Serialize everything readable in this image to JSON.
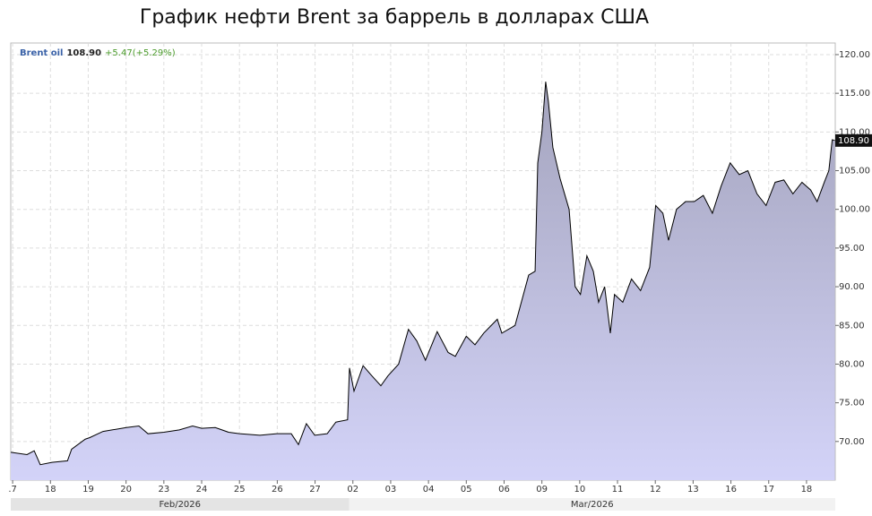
{
  "chart_data": {
    "type": "area",
    "title": "График нефти Brent за баррель в долларах США",
    "series": [
      {
        "name": "Brent oil",
        "color": "#000000",
        "x": [
          -0.05,
          0.38,
          0.57,
          0.73,
          1.04,
          1.45,
          1.56,
          1.92,
          2.04,
          2.39,
          3.01,
          3.34,
          3.58,
          4.0,
          4.41,
          4.76,
          5.0,
          5.36,
          5.71,
          6.0,
          6.54,
          6.99,
          7.37,
          7.56,
          7.77,
          7.99,
          8.32,
          8.55,
          8.86,
          8.91,
          9.03,
          9.27,
          9.5,
          9.74,
          9.93,
          10.21,
          10.47,
          10.69,
          10.92,
          11.23,
          11.52,
          11.71,
          12.0,
          12.23,
          12.46,
          12.82,
          12.94,
          13.29,
          13.65,
          13.82,
          13.89,
          14.0,
          14.1,
          14.17,
          14.29,
          14.48,
          14.6,
          14.72,
          14.88,
          15.02,
          15.19,
          15.36,
          15.5,
          15.66,
          15.81,
          15.92,
          16.14,
          16.37,
          16.61,
          16.85,
          17.01,
          17.2,
          17.35,
          17.56,
          17.8,
          18.03,
          18.27,
          18.51,
          18.74,
          18.98,
          19.22,
          19.45,
          19.69,
          19.93,
          20.17,
          20.4,
          20.64,
          20.88,
          21.11,
          21.28,
          21.47,
          21.59,
          21.68,
          21.75
        ],
        "values": [
          68.6,
          68.3,
          68.8,
          67.0,
          67.3,
          67.5,
          69.0,
          70.3,
          70.5,
          71.3,
          71.8,
          72.0,
          71.0,
          71.2,
          71.5,
          72.0,
          71.7,
          71.8,
          71.2,
          71.0,
          70.8,
          71.0,
          71.0,
          69.6,
          72.3,
          70.8,
          71.0,
          72.5,
          72.8,
          79.5,
          76.5,
          79.8,
          78.5,
          77.2,
          78.5,
          80.0,
          84.5,
          83.0,
          80.5,
          84.2,
          81.5,
          81.0,
          83.6,
          82.5,
          84.0,
          85.8,
          84.0,
          85.0,
          91.5,
          92.0,
          106.0,
          110.0,
          116.5,
          114.0,
          108.0,
          104.0,
          102.0,
          100.0,
          90.0,
          89.0,
          94.0,
          92.0,
          88.0,
          90.0,
          84.0,
          89.0,
          88.0,
          91.0,
          89.5,
          92.5,
          100.5,
          99.5,
          96.0,
          100.0,
          101.0,
          101.0,
          101.8,
          99.5,
          103.0,
          106.0,
          104.5,
          105.0,
          102.0,
          100.5,
          103.5,
          103.8,
          102.0,
          103.5,
          102.5,
          101.0,
          103.5,
          105.0,
          109.0,
          108.9
        ]
      }
    ],
    "last_price": {
      "value": 108.9,
      "label": "108.90"
    },
    "change": "+5.47(+5.29%)",
    "xlim": [
      -0.05,
      21.76
    ],
    "ylim": [
      65,
      121.5
    ],
    "xticks": [
      {
        "value": 0,
        "label": ".7"
      },
      {
        "value": 1,
        "label": "18"
      },
      {
        "value": 2,
        "label": "19"
      },
      {
        "value": 3,
        "label": "20"
      },
      {
        "value": 4,
        "label": "23"
      },
      {
        "value": 5,
        "label": "24"
      },
      {
        "value": 6,
        "label": "25"
      },
      {
        "value": 7,
        "label": "26"
      },
      {
        "value": 8,
        "label": "27"
      },
      {
        "value": 9,
        "label": "02"
      },
      {
        "value": 10,
        "label": "03"
      },
      {
        "value": 11,
        "label": "04"
      },
      {
        "value": 12,
        "label": "05"
      },
      {
        "value": 13,
        "label": "06"
      },
      {
        "value": 14,
        "label": "09"
      },
      {
        "value": 15,
        "label": "10"
      },
      {
        "value": 16,
        "label": "11"
      },
      {
        "value": 17,
        "label": "12"
      },
      {
        "value": 18,
        "label": "13"
      },
      {
        "value": 19,
        "label": "16"
      },
      {
        "value": 20,
        "label": "17"
      },
      {
        "value": 21,
        "label": "18"
      }
    ],
    "yticks": [
      {
        "value": 70,
        "label": "70.00"
      },
      {
        "value": 75,
        "label": "75.00"
      },
      {
        "value": 80,
        "label": "80.00"
      },
      {
        "value": 85,
        "label": "85.00"
      },
      {
        "value": 90,
        "label": "90.00"
      },
      {
        "value": 95,
        "label": "95.00"
      },
      {
        "value": 100,
        "label": "100.00"
      },
      {
        "value": 105,
        "label": "105.00"
      },
      {
        "value": 110,
        "label": "110.00"
      },
      {
        "value": 115,
        "label": "115.00"
      },
      {
        "value": 120,
        "label": "120.00"
      }
    ],
    "months": [
      {
        "label": "Feb/2026",
        "start": -0.05
      },
      {
        "label": "Mar/2026",
        "start": 8.9
      }
    ],
    "grid": true
  }
}
